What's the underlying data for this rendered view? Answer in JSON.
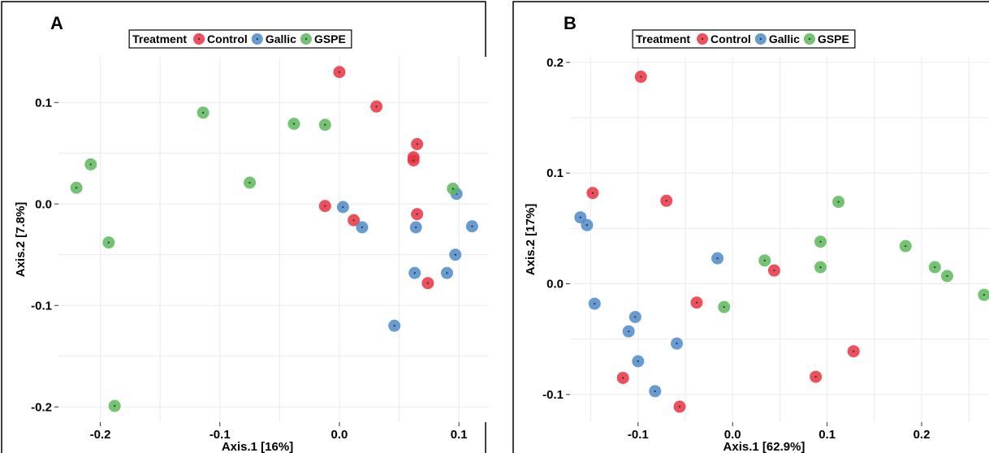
{
  "chart_data": [
    {
      "type": "scatter",
      "panel_label": "A",
      "xlabel": "Axis.1   [16%]",
      "ylabel": "Axis.2   [7.8%]",
      "xlim": [
        -0.235,
        0.125
      ],
      "ylim": [
        -0.215,
        0.145
      ],
      "xticks": [
        -0.2,
        -0.1,
        0.0,
        0.1
      ],
      "xtick_labels": [
        "-0.2",
        "-0.1",
        "0.0",
        "0.1"
      ],
      "yticks": [
        -0.2,
        -0.1,
        0.0,
        0.1
      ],
      "ytick_labels": [
        "-0.2",
        "-0.1",
        "0.0",
        "0.1"
      ],
      "grid": true,
      "legend_title": "Treatment",
      "legend_position": "top-center",
      "series": [
        {
          "name": "Control",
          "color": "#e8313f",
          "points": [
            [
              0.0,
              0.13
            ],
            [
              0.031,
              0.096
            ],
            [
              0.065,
              0.059
            ],
            [
              0.062,
              0.046
            ],
            [
              0.062,
              0.043
            ],
            [
              -0.012,
              -0.002
            ],
            [
              0.012,
              -0.016
            ],
            [
              0.065,
              -0.01
            ],
            [
              0.074,
              -0.078
            ]
          ]
        },
        {
          "name": "Gallic",
          "color": "#4d8bc9",
          "points": [
            [
              0.003,
              -0.003
            ],
            [
              0.019,
              -0.023
            ],
            [
              0.064,
              -0.023
            ],
            [
              0.098,
              0.01
            ],
            [
              0.111,
              -0.022
            ],
            [
              0.097,
              -0.05
            ],
            [
              0.063,
              -0.068
            ],
            [
              0.09,
              -0.068
            ],
            [
              0.046,
              -0.12
            ]
          ]
        },
        {
          "name": "GSPE",
          "color": "#5cb85c",
          "points": [
            [
              -0.114,
              0.09
            ],
            [
              -0.038,
              0.079
            ],
            [
              -0.012,
              0.078
            ],
            [
              -0.075,
              0.021
            ],
            [
              -0.208,
              0.039
            ],
            [
              -0.22,
              0.016
            ],
            [
              -0.193,
              -0.038
            ],
            [
              -0.188,
              -0.199
            ],
            [
              0.095,
              0.015
            ]
          ]
        }
      ]
    },
    {
      "type": "scatter",
      "panel_label": "B",
      "xlabel": "Axis.1   [62.9%]",
      "ylabel": "Axis.2   [17%]",
      "xlim": [
        -0.172,
        0.273
      ],
      "ylim": [
        -0.125,
        0.205
      ],
      "xticks": [
        -0.1,
        0.0,
        0.1,
        0.2
      ],
      "xtick_labels": [
        "-0.1",
        "0.0",
        "0.1",
        "0.2"
      ],
      "yticks": [
        -0.1,
        0.0,
        0.1,
        0.2
      ],
      "ytick_labels": [
        "-0.1",
        "0.0",
        "0.1",
        "0.2"
      ],
      "grid": true,
      "legend_title": "Treatment",
      "legend_position": "top-center",
      "series": [
        {
          "name": "Control",
          "color": "#e8313f",
          "points": [
            [
              -0.097,
              0.187
            ],
            [
              -0.148,
              0.082
            ],
            [
              -0.07,
              0.075
            ],
            [
              0.044,
              0.012
            ],
            [
              -0.038,
              -0.017
            ],
            [
              0.128,
              -0.061
            ],
            [
              -0.116,
              -0.085
            ],
            [
              0.088,
              -0.084
            ],
            [
              -0.056,
              -0.111
            ]
          ]
        },
        {
          "name": "Gallic",
          "color": "#4d8bc9",
          "points": [
            [
              -0.161,
              0.06
            ],
            [
              -0.154,
              0.053
            ],
            [
              -0.016,
              0.023
            ],
            [
              -0.146,
              -0.018
            ],
            [
              -0.103,
              -0.03
            ],
            [
              -0.11,
              -0.043
            ],
            [
              -0.059,
              -0.054
            ],
            [
              -0.1,
              -0.07
            ],
            [
              -0.082,
              -0.097
            ]
          ]
        },
        {
          "name": "GSPE",
          "color": "#5cb85c",
          "points": [
            [
              0.112,
              0.074
            ],
            [
              0.093,
              0.038
            ],
            [
              0.183,
              0.034
            ],
            [
              0.034,
              0.021
            ],
            [
              0.093,
              0.015
            ],
            [
              0.214,
              0.015
            ],
            [
              0.227,
              0.007
            ],
            [
              -0.009,
              -0.021
            ],
            [
              0.266,
              -0.01
            ]
          ]
        }
      ]
    }
  ]
}
